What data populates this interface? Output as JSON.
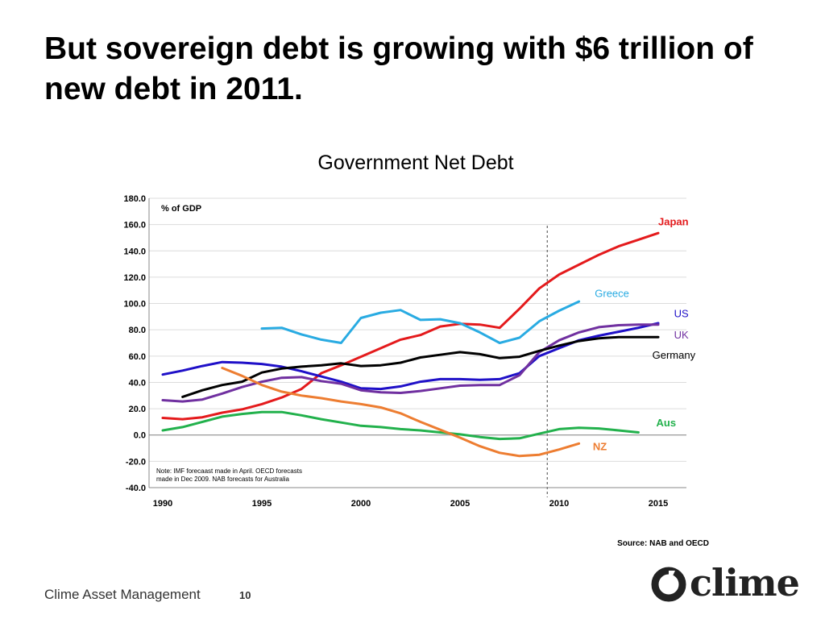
{
  "slide": {
    "title": "But sovereign debt is growing with $6 trillion of new debt in 2011.",
    "footer": "Clime Asset Management",
    "page_number": "10",
    "logo_text": "clime"
  },
  "chart_data": {
    "type": "line",
    "title": "Government Net Debt",
    "unit_label": "% of GDP",
    "ylim": [
      -40,
      180
    ],
    "xlim": [
      1990,
      2016
    ],
    "yticks": [
      "180.0",
      "160.0",
      "140.0",
      "120.0",
      "100.0",
      "80.0",
      "60.0",
      "40.0",
      "20.0",
      "0.0",
      "-20.0",
      "-40.0"
    ],
    "xticks": [
      "1990",
      "1995",
      "2000",
      "2005",
      "2010",
      "2015"
    ],
    "forecast_line_x": 2009.4,
    "note": [
      "Note: IMF forecaast made in April. OECD forecasts",
      "made in Dec 2009. NAB forecasts for Australia"
    ],
    "source": "Source: NAB and OECD",
    "grid": true,
    "series": [
      {
        "name": "Japan",
        "color": "#e41a1c",
        "x": [
          1990,
          1991,
          1992,
          1993,
          1994,
          1995,
          1996,
          1997,
          1998,
          1999,
          2000,
          2001,
          2002,
          2003,
          2004,
          2005,
          2006,
          2007,
          2008,
          2009,
          2010,
          2011,
          2012,
          2013,
          2014,
          2015
        ],
        "y": [
          13,
          12,
          13.5,
          17,
          19.5,
          23.5,
          28.5,
          35,
          47,
          53,
          59.5,
          66,
          72.5,
          76,
          82.5,
          84.5,
          84,
          81.5,
          96,
          111.5,
          122,
          129.5,
          137,
          143.5,
          148.5,
          153.5
        ]
      },
      {
        "name": "Greece",
        "color": "#29abe2",
        "x": [
          1995,
          1996,
          1997,
          1998,
          1999,
          2000,
          2001,
          2002,
          2003,
          2004,
          2005,
          2006,
          2007,
          2008,
          2009,
          2010,
          2011
        ],
        "y": [
          81,
          81.5,
          76.5,
          72.5,
          70,
          89,
          93,
          95,
          87.5,
          88,
          85,
          78,
          70,
          74,
          86.5,
          94.5,
          101.5
        ]
      },
      {
        "name": "US",
        "color": "#1f10c8",
        "x": [
          1990,
          1991,
          1992,
          1993,
          1994,
          1995,
          1996,
          1997,
          1998,
          1999,
          2000,
          2001,
          2002,
          2003,
          2004,
          2005,
          2006,
          2007,
          2008,
          2009,
          2010,
          2011,
          2012,
          2013,
          2014,
          2015
        ],
        "y": [
          46,
          49,
          52.5,
          55.5,
          55,
          54,
          52,
          48.5,
          44.5,
          40.5,
          35.5,
          35,
          37,
          40.5,
          42.5,
          42.5,
          42,
          42.5,
          47,
          60,
          66,
          72,
          75.5,
          78.5,
          81.5,
          85
        ]
      },
      {
        "name": "UK",
        "color": "#7030a0",
        "x": [
          1990,
          1991,
          1992,
          1993,
          1994,
          1995,
          1996,
          1997,
          1998,
          1999,
          2000,
          2001,
          2002,
          2003,
          2004,
          2005,
          2006,
          2007,
          2008,
          2009,
          2010,
          2011,
          2012,
          2013,
          2014,
          2015
        ],
        "y": [
          26.5,
          25.5,
          27,
          31.5,
          36.5,
          40.5,
          43.5,
          44,
          41,
          39,
          34,
          32.5,
          32,
          33.5,
          35.5,
          37.5,
          38,
          38,
          45.5,
          63,
          72,
          78,
          82,
          83.5,
          84,
          84
        ]
      },
      {
        "name": "Germany",
        "color": "#000000",
        "x": [
          1991,
          1992,
          1993,
          1994,
          1995,
          1996,
          1997,
          1998,
          1999,
          2000,
          2001,
          2002,
          2003,
          2004,
          2005,
          2006,
          2007,
          2008,
          2009,
          2010,
          2011,
          2012,
          2013,
          2014,
          2015
        ],
        "y": [
          29,
          34,
          38,
          40.5,
          47.5,
          50.5,
          52,
          53,
          54.5,
          52.5,
          53,
          55,
          59,
          61,
          63,
          61.5,
          58.5,
          59.5,
          64,
          68,
          71.5,
          73.5,
          74.5,
          74.5,
          74.5
        ]
      },
      {
        "name": "Aus",
        "color": "#22b14c",
        "x": [
          1990,
          1991,
          1992,
          1993,
          1994,
          1995,
          1996,
          1997,
          1998,
          1999,
          2000,
          2001,
          2002,
          2003,
          2004,
          2005,
          2006,
          2007,
          2008,
          2009,
          2010,
          2011,
          2012,
          2013,
          2014
        ],
        "y": [
          3.5,
          6,
          10,
          14,
          16,
          17.5,
          17.5,
          15,
          12,
          9.5,
          7,
          6,
          4.5,
          3.5,
          2,
          0.5,
          -1.5,
          -3,
          -2.5,
          1,
          4.5,
          5.5,
          5,
          3.5,
          2
        ]
      },
      {
        "name": "NZ",
        "color": "#ed7d31",
        "x": [
          1993,
          1994,
          1995,
          1996,
          1997,
          1998,
          1999,
          2000,
          2001,
          2002,
          2003,
          2004,
          2005,
          2006,
          2007,
          2008,
          2009,
          2010,
          2011
        ],
        "y": [
          51,
          45,
          38,
          33,
          30,
          28,
          25.5,
          23.5,
          21,
          16.5,
          10,
          4,
          -2,
          -8.5,
          -13.5,
          -16,
          -15,
          -11,
          -6.5
        ]
      }
    ],
    "labels": [
      {
        "text": "Japan",
        "color": "#e41a1c",
        "x": 2015.0,
        "y": 159.5,
        "anchor": "start"
      },
      {
        "text": "Greece",
        "color": "#29abe2",
        "x": 2011.8,
        "y": 105,
        "anchor": "start"
      },
      {
        "text": "US",
        "color": "#1f10c8",
        "x": 2015.8,
        "y": 89.5,
        "anchor": "start"
      },
      {
        "text": "UK",
        "color": "#7030a0",
        "x": 2015.8,
        "y": 73.5,
        "anchor": "start"
      },
      {
        "text": "Germany",
        "color": "#000000",
        "x": 2014.7,
        "y": 58,
        "anchor": "start"
      },
      {
        "text": "Aus",
        "color": "#22b14c",
        "x": 2014.9,
        "y": 6.5,
        "anchor": "start"
      },
      {
        "text": "NZ",
        "color": "#ed7d31",
        "x": 2011.7,
        "y": -11.5,
        "anchor": "start"
      }
    ]
  }
}
